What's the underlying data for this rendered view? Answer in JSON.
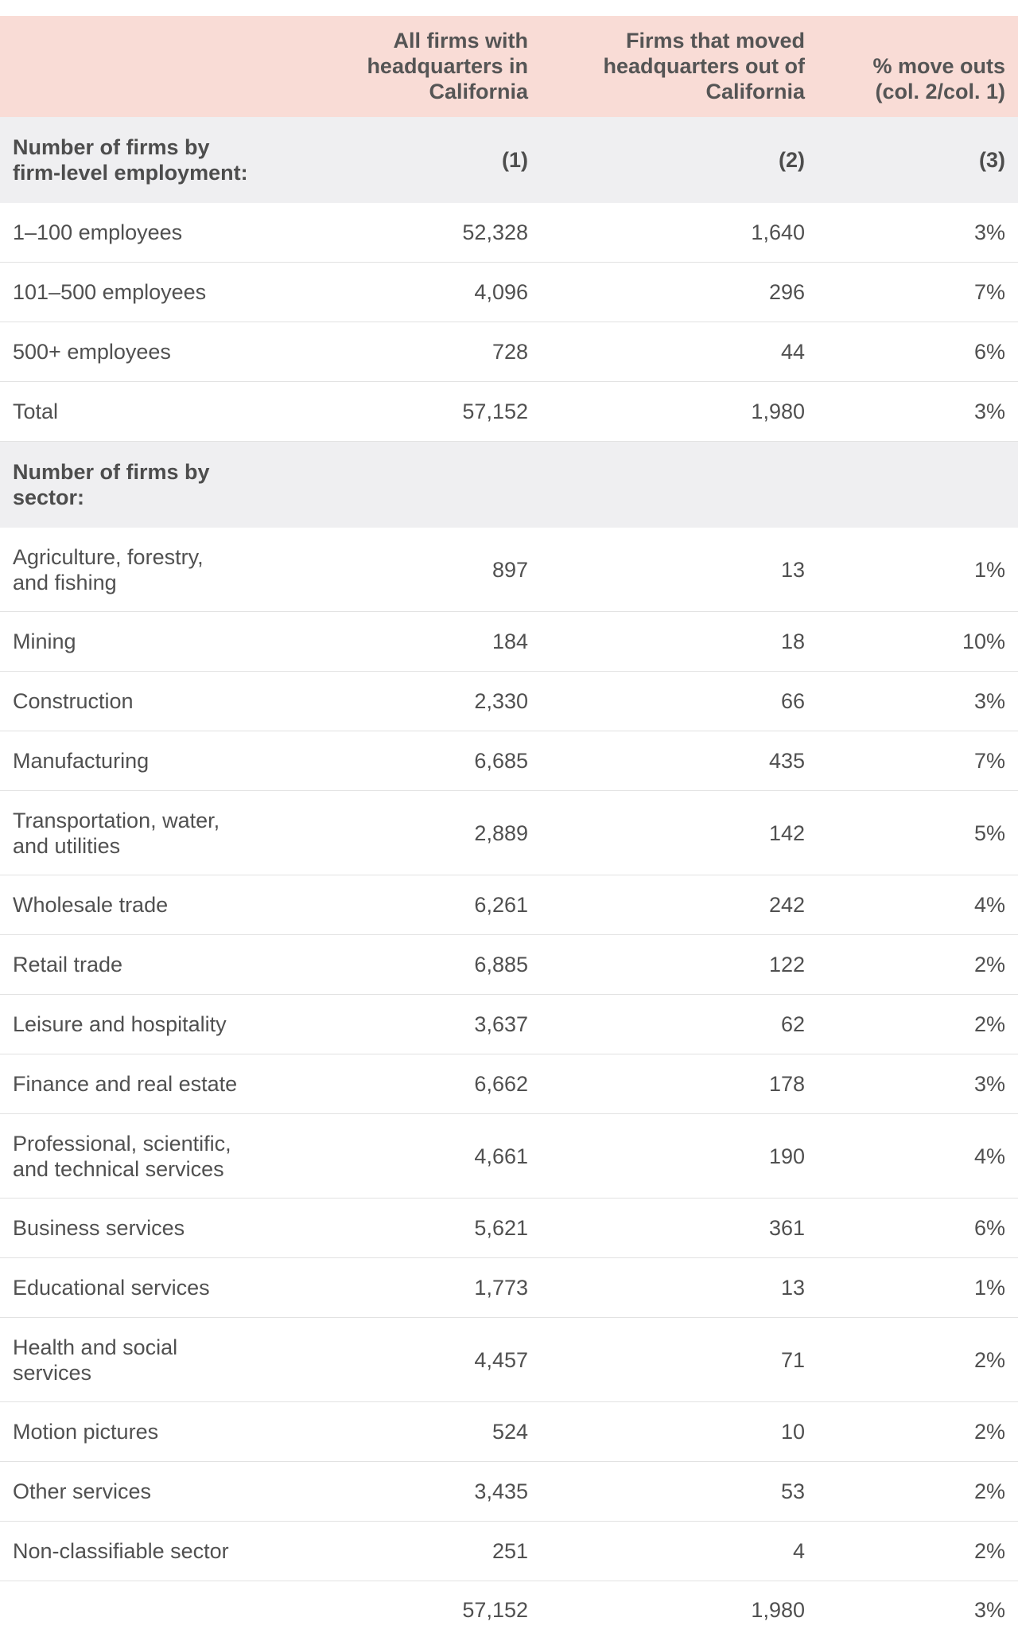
{
  "chart_data": {
    "type": "table",
    "columns": [
      "",
      "All firms with headquarters in California",
      "Firms that moved headquarters out of California",
      "% move outs (col. 2/col. 1)"
    ],
    "header_lines": [
      [],
      [
        "All firms with",
        "headquarters in",
        "California"
      ],
      [
        "Firms that moved",
        "headquarters out of",
        "California"
      ],
      [
        "% move outs",
        "(col. 2/col. 1)"
      ]
    ],
    "column_numbers": [
      "(1)",
      "(2)",
      "(3)"
    ],
    "sections": [
      {
        "title_lines": [
          "Number of firms by",
          "firm-level employment:"
        ],
        "rows": [
          {
            "label": [
              "1–100 employees"
            ],
            "values": [
              "52,328",
              "1,640",
              "3%"
            ]
          },
          {
            "label": [
              "101–500 employees"
            ],
            "values": [
              "4,096",
              "296",
              "7%"
            ]
          },
          {
            "label": [
              "500+ employees"
            ],
            "values": [
              "728",
              "44",
              "6%"
            ]
          },
          {
            "label": [
              "Total"
            ],
            "values": [
              "57,152",
              "1,980",
              "3%"
            ]
          }
        ]
      },
      {
        "title_lines": [
          "Number of firms by",
          "sector:"
        ],
        "rows": [
          {
            "label": [
              "Agriculture, forestry,",
              "and fishing"
            ],
            "values": [
              "897",
              "13",
              "1%"
            ]
          },
          {
            "label": [
              "Mining"
            ],
            "values": [
              "184",
              "18",
              "10%"
            ]
          },
          {
            "label": [
              "Construction"
            ],
            "values": [
              "2,330",
              "66",
              "3%"
            ]
          },
          {
            "label": [
              "Manufacturing"
            ],
            "values": [
              "6,685",
              "435",
              "7%"
            ]
          },
          {
            "label": [
              "Transportation, water,",
              "and utilities"
            ],
            "values": [
              "2,889",
              "142",
              "5%"
            ]
          },
          {
            "label": [
              "Wholesale trade"
            ],
            "values": [
              "6,261",
              "242",
              "4%"
            ]
          },
          {
            "label": [
              "Retail trade"
            ],
            "values": [
              "6,885",
              "122",
              "2%"
            ]
          },
          {
            "label": [
              "Leisure and hospitality"
            ],
            "values": [
              "3,637",
              "62",
              "2%"
            ]
          },
          {
            "label": [
              "Finance and real estate"
            ],
            "values": [
              "6,662",
              "178",
              "3%"
            ]
          },
          {
            "label": [
              "Professional, scientific,",
              "and technical services"
            ],
            "values": [
              "4,661",
              "190",
              "4%"
            ]
          },
          {
            "label": [
              "Business services"
            ],
            "values": [
              "5,621",
              "361",
              "6%"
            ]
          },
          {
            "label": [
              "Educational services"
            ],
            "values": [
              "1,773",
              "13",
              "1%"
            ]
          },
          {
            "label": [
              "Health and social",
              "services"
            ],
            "values": [
              "4,457",
              "71",
              "2%"
            ]
          },
          {
            "label": [
              "Motion pictures"
            ],
            "values": [
              "524",
              "10",
              "2%"
            ]
          },
          {
            "label": [
              "Other services"
            ],
            "values": [
              "3,435",
              "53",
              "2%"
            ]
          },
          {
            "label": [
              "Non-classifiable sector"
            ],
            "values": [
              "251",
              "4",
              "2%"
            ]
          }
        ],
        "total": {
          "label": "",
          "values": [
            "57,152",
            "1,980",
            "3%"
          ]
        }
      }
    ]
  },
  "colors": {
    "header_bg": "#f9dcd6",
    "section_bg": "#efeff1",
    "divider": "#e2e2e2",
    "text": "#4a4a4a"
  }
}
